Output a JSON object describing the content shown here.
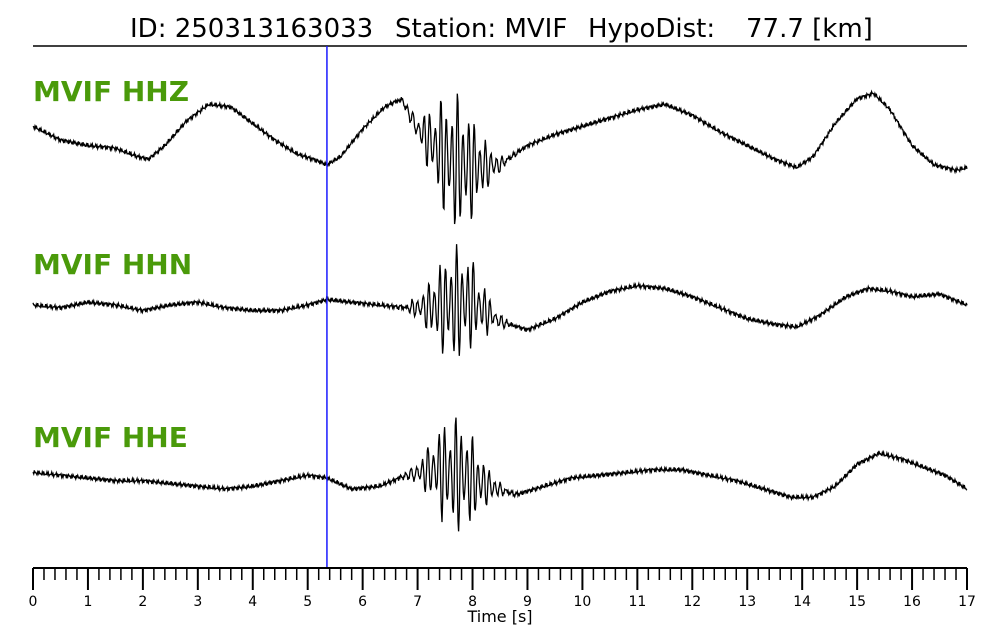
{
  "header": {
    "id_text": "ID: 250313163033",
    "station_text": "Station: MVIF",
    "hypodist_text": "HypoDist:",
    "hypodist_value": "77.7 [km]"
  },
  "colors": {
    "label": "#4a9a0a",
    "pick_line": "#1a1aff",
    "trace": "#000000"
  },
  "chart_data": {
    "type": "line",
    "xlabel": "Time [s]",
    "xlim": [
      0,
      17
    ],
    "major_ticks": [
      0,
      1,
      2,
      3,
      4,
      5,
      6,
      7,
      8,
      9,
      10,
      11,
      12,
      13,
      14,
      15,
      16,
      17
    ],
    "minor_tick_step": 0.2,
    "tick_labels": [
      "0",
      "1",
      "2",
      "3",
      "4",
      "5",
      "6",
      "7",
      "8",
      "9",
      "10",
      "11",
      "12",
      "13",
      "14",
      "15",
      "16",
      "17"
    ],
    "pick_time": 5.35,
    "series": [
      {
        "name": "MVIF HHZ",
        "label": "MVIF HHZ",
        "x": [
          0,
          0.2,
          0.5,
          1.0,
          1.5,
          1.9,
          2.1,
          2.4,
          2.8,
          3.2,
          3.6,
          4.0,
          4.4,
          4.8,
          5.1,
          5.35,
          5.6,
          6.0,
          6.4,
          6.7,
          7.0,
          7.3,
          7.6,
          8.0,
          8.5,
          9.0,
          9.5,
          10.0,
          10.5,
          11.0,
          11.5,
          12.0,
          12.5,
          13.0,
          13.5,
          13.9,
          14.2,
          14.6,
          15.0,
          15.3,
          15.6,
          16.0,
          16.4,
          16.8,
          17.0
        ],
        "y": [
          0.25,
          0.15,
          0.0,
          -0.1,
          -0.15,
          -0.3,
          -0.35,
          -0.1,
          0.35,
          0.65,
          0.6,
          0.3,
          0.0,
          -0.25,
          -0.35,
          -0.45,
          -0.3,
          0.2,
          0.6,
          0.75,
          0.2,
          -0.1,
          -0.4,
          -0.5,
          -0.45,
          -0.1,
          0.1,
          0.25,
          0.4,
          0.55,
          0.65,
          0.45,
          0.15,
          -0.1,
          -0.35,
          -0.5,
          -0.3,
          0.3,
          0.75,
          0.85,
          0.55,
          -0.1,
          -0.45,
          -0.55,
          -0.5
        ]
      },
      {
        "name": "MVIF HHN",
        "label": "MVIF HHN",
        "x": [
          0,
          0.5,
          1.0,
          1.5,
          2.0,
          2.5,
          3.0,
          3.5,
          4.0,
          4.5,
          5.0,
          5.35,
          5.8,
          6.3,
          6.8,
          7.2,
          7.6,
          8.0,
          8.5,
          9.0,
          9.5,
          10.0,
          10.5,
          11.0,
          11.5,
          12.0,
          12.5,
          13.0,
          13.5,
          13.9,
          14.3,
          14.8,
          15.2,
          15.6,
          16.0,
          16.5,
          17.0
        ],
        "y": [
          0.0,
          -0.05,
          0.05,
          0.0,
          -0.1,
          0.0,
          0.05,
          -0.05,
          -0.1,
          -0.1,
          0.0,
          0.1,
          0.05,
          0.0,
          -0.05,
          -0.05,
          0.0,
          0.05,
          -0.3,
          -0.45,
          -0.25,
          0.05,
          0.25,
          0.35,
          0.3,
          0.15,
          -0.05,
          -0.25,
          -0.35,
          -0.4,
          -0.2,
          0.15,
          0.3,
          0.25,
          0.15,
          0.2,
          0.0
        ]
      },
      {
        "name": "MVIF HHE",
        "label": "MVIF HHE",
        "x": [
          0,
          0.5,
          1.0,
          1.5,
          2.0,
          2.5,
          3.0,
          3.5,
          4.0,
          4.5,
          5.0,
          5.35,
          5.8,
          6.3,
          6.8,
          7.3,
          7.8,
          8.3,
          8.8,
          9.3,
          9.8,
          10.3,
          10.8,
          11.3,
          11.8,
          12.3,
          12.8,
          13.3,
          13.8,
          14.2,
          14.6,
          15.0,
          15.4,
          15.8,
          16.2,
          16.6,
          17.0
        ],
        "y": [
          0.1,
          0.05,
          0.0,
          -0.05,
          -0.05,
          -0.1,
          -0.15,
          -0.2,
          -0.15,
          -0.05,
          0.05,
          0.0,
          -0.2,
          -0.15,
          0.05,
          0.15,
          0.05,
          -0.15,
          -0.3,
          -0.15,
          0.0,
          0.05,
          0.1,
          0.15,
          0.15,
          0.05,
          -0.05,
          -0.2,
          -0.35,
          -0.35,
          -0.15,
          0.25,
          0.45,
          0.35,
          0.2,
          0.05,
          -0.2
        ]
      }
    ]
  }
}
